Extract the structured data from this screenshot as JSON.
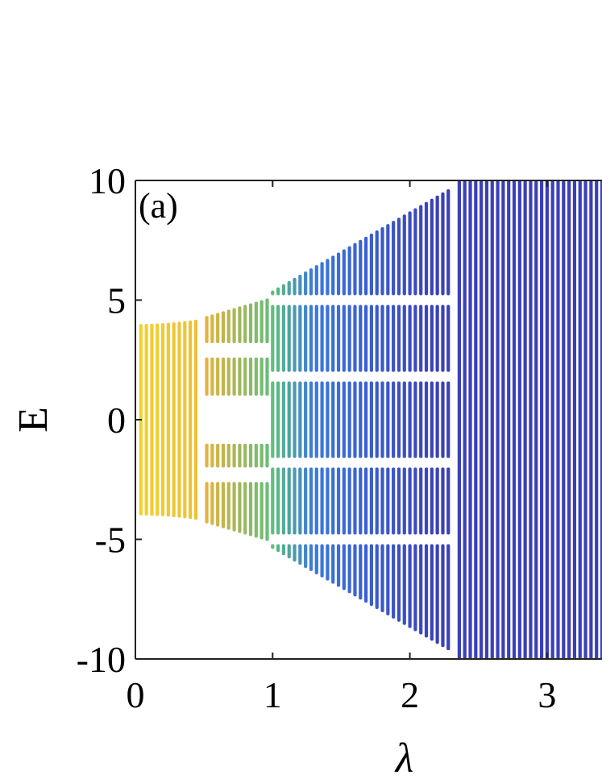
{
  "chart_data": {
    "type": "scatter",
    "title": "",
    "panel_label": "(a)",
    "xlabel": "λ",
    "ylabel": "E",
    "xlim": [
      0,
      3.4
    ],
    "ylim": [
      -10,
      10
    ],
    "x_ticks": [
      0,
      1,
      2,
      3
    ],
    "x_tick_labels": [
      "0",
      "1",
      "2",
      "3"
    ],
    "y_ticks": [
      10,
      5,
      0,
      -5,
      -10
    ],
    "y_tick_labels": [
      "10",
      "5",
      "0",
      "-5",
      "-10"
    ],
    "grid": false,
    "lambda_step": 0.04,
    "lambda_range": [
      0.04,
      3.4
    ],
    "bands": [
      {
        "lambda_from": 0.04,
        "lambda_to": 0.46,
        "ranges": [
          [
            -4.0,
            4.0
          ]
        ]
      },
      {
        "lambda_from": 0.5,
        "lambda_to": 0.98,
        "ranges": [
          [
            -5.0,
            -2.6
          ],
          [
            -2.0,
            -1.0
          ],
          [
            1.0,
            2.6
          ],
          [
            3.2,
            5.0
          ]
        ]
      },
      {
        "lambda_from": 1.0,
        "lambda_to": 2.3,
        "ranges": [
          [
            -9.2,
            -5.2
          ],
          [
            -4.8,
            -2.0
          ],
          [
            -1.6,
            1.6
          ],
          [
            2.0,
            4.8
          ],
          [
            5.2,
            9.2
          ]
        ]
      },
      {
        "lambda_from": 2.34,
        "lambda_to": 3.4,
        "ranges": [
          [
            -10.0,
            10.0
          ]
        ]
      }
    ],
    "colorscale": {
      "low_lambda": "#F2D32E",
      "mid_lambda": "#E8B23A",
      "transition": "#5FBE7A",
      "cyan_edges": "#2BC0C0",
      "high_lambda": "#3B40B8"
    }
  }
}
